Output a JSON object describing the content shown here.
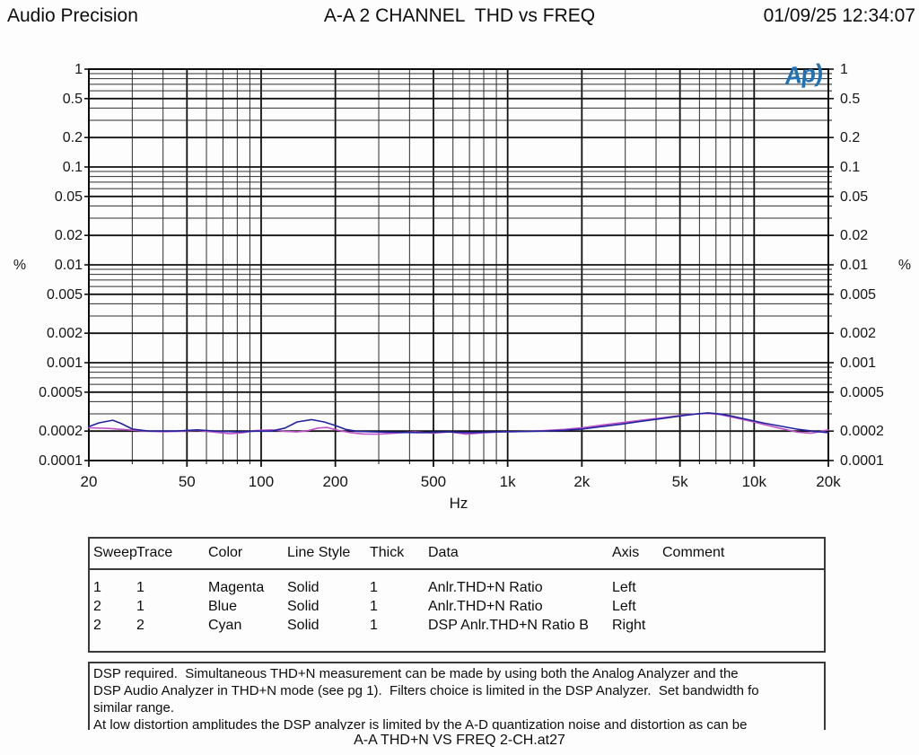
{
  "header": {
    "app": "Audio Precision",
    "title": "A-A 2 CHANNEL  THD vs FREQ",
    "datetime": "01/09/25 12:34:07"
  },
  "logo": {
    "text": "Ap)"
  },
  "chart_data": {
    "type": "line",
    "x_scale": "log",
    "y_scale": "log",
    "x_range": [
      20,
      20000
    ],
    "y_range": [
      0.0001,
      1
    ],
    "x_axis_label": "Hz",
    "y_axis_label_left": "%",
    "y_axis_label_right": "%",
    "grid": "on",
    "x_ticks": [
      {
        "value": 20,
        "label": "20"
      },
      {
        "value": 50,
        "label": "50"
      },
      {
        "value": 100,
        "label": "100"
      },
      {
        "value": 200,
        "label": "200"
      },
      {
        "value": 500,
        "label": "500"
      },
      {
        "value": 1000,
        "label": "1k"
      },
      {
        "value": 2000,
        "label": "2k"
      },
      {
        "value": 5000,
        "label": "5k"
      },
      {
        "value": 10000,
        "label": "10k"
      },
      {
        "value": 20000,
        "label": "20k"
      }
    ],
    "y_ticks": [
      {
        "value": 1,
        "label": "1"
      },
      {
        "value": 0.5,
        "label": "0.5"
      },
      {
        "value": 0.2,
        "label": "0.2"
      },
      {
        "value": 0.1,
        "label": "0.1"
      },
      {
        "value": 0.05,
        "label": "0.05"
      },
      {
        "value": 0.02,
        "label": "0.02"
      },
      {
        "value": 0.01,
        "label": "0.01"
      },
      {
        "value": 0.005,
        "label": "0.005"
      },
      {
        "value": 0.002,
        "label": "0.002"
      },
      {
        "value": 0.001,
        "label": "0.001"
      },
      {
        "value": 0.0005,
        "label": "0.0005"
      },
      {
        "value": 0.0002,
        "label": "0.0002"
      },
      {
        "value": 0.0001,
        "label": "0.0001"
      }
    ],
    "series": [
      {
        "name": "Anlr.THD+N Ratio (Sweep 1)",
        "color_name": "Magenta",
        "color": "#bf52c8",
        "axis": "Left",
        "points": [
          [
            20,
            0.000216
          ],
          [
            24,
            0.000213
          ],
          [
            28,
            0.000207
          ],
          [
            33,
            0.000201
          ],
          [
            40,
            0.000197
          ],
          [
            48,
            0.0002
          ],
          [
            55,
            0.000204
          ],
          [
            65,
            0.000195
          ],
          [
            75,
            0.000188
          ],
          [
            85,
            0.000193
          ],
          [
            95,
            0.000203
          ],
          [
            110,
            0.000206
          ],
          [
            125,
            0.000199
          ],
          [
            140,
            0.000196
          ],
          [
            155,
            0.000202
          ],
          [
            170,
            0.000215
          ],
          [
            185,
            0.000218
          ],
          [
            205,
            0.000204
          ],
          [
            230,
            0.000193
          ],
          [
            260,
            0.000187
          ],
          [
            300,
            0.000186
          ],
          [
            350,
            0.000191
          ],
          [
            420,
            0.000196
          ],
          [
            500,
            0.000191
          ],
          [
            580,
            0.000196
          ],
          [
            680,
            0.000186
          ],
          [
            800,
            0.000192
          ],
          [
            950,
            0.000196
          ],
          [
            1150,
            0.000198
          ],
          [
            1400,
            0.000202
          ],
          [
            1700,
            0.000208
          ],
          [
            2000,
            0.000216
          ],
          [
            2400,
            0.00023
          ],
          [
            2900,
            0.000244
          ],
          [
            3500,
            0.000258
          ],
          [
            4200,
            0.000273
          ],
          [
            5000,
            0.000289
          ],
          [
            5800,
            0.000299
          ],
          [
            6500,
            0.000303
          ],
          [
            7300,
            0.000295
          ],
          [
            8200,
            0.000277
          ],
          [
            9500,
            0.000255
          ],
          [
            11000,
            0.000233
          ],
          [
            13000,
            0.000211
          ],
          [
            15000,
            0.000195
          ],
          [
            17000,
            0.00019
          ],
          [
            18500,
            0.000198
          ],
          [
            20000,
            0.000206
          ]
        ]
      },
      {
        "name": "Anlr.THD+N Ratio (Sweep 2)",
        "color_name": "Blue",
        "color": "#2323a0",
        "axis": "Left",
        "points": [
          [
            20,
            0.000222
          ],
          [
            22,
            0.000243
          ],
          [
            25,
            0.000258
          ],
          [
            27,
            0.00024
          ],
          [
            30,
            0.00021
          ],
          [
            35,
            0.0002
          ],
          [
            45,
            0.0002
          ],
          [
            55,
            0.000206
          ],
          [
            65,
            0.0002
          ],
          [
            80,
            0.000196
          ],
          [
            95,
            0.0002
          ],
          [
            110,
            0.0002
          ],
          [
            125,
            0.000215
          ],
          [
            140,
            0.000248
          ],
          [
            160,
            0.000262
          ],
          [
            180,
            0.000248
          ],
          [
            200,
            0.000228
          ],
          [
            220,
            0.000208
          ],
          [
            245,
            0.000199
          ],
          [
            280,
            0.000197
          ],
          [
            350,
            0.000194
          ],
          [
            450,
            0.000193
          ],
          [
            560,
            0.000196
          ],
          [
            700,
            0.000193
          ],
          [
            900,
            0.000196
          ],
          [
            1100,
            0.000198
          ],
          [
            1400,
            0.0002
          ],
          [
            1700,
            0.000204
          ],
          [
            2000,
            0.00021
          ],
          [
            2400,
            0.000222
          ],
          [
            2900,
            0.000236
          ],
          [
            3500,
            0.000252
          ],
          [
            4200,
            0.000268
          ],
          [
            5000,
            0.000285
          ],
          [
            5800,
            0.000299
          ],
          [
            6500,
            0.000307
          ],
          [
            7300,
            0.000299
          ],
          [
            8200,
            0.000283
          ],
          [
            9500,
            0.000261
          ],
          [
            11000,
            0.000241
          ],
          [
            13000,
            0.000223
          ],
          [
            15000,
            0.000209
          ],
          [
            17500,
            0.000199
          ],
          [
            20000,
            0.000193
          ]
        ]
      }
    ]
  },
  "legend_table": {
    "headers": [
      "Sweep",
      "Trace",
      "Color",
      "Line Style",
      "Thick",
      "Data",
      "Axis",
      "Comment"
    ],
    "rows": [
      [
        "1",
        "1",
        "Magenta",
        "Solid",
        "1",
        "Anlr.THD+N Ratio",
        "Left",
        ""
      ],
      [
        "2",
        "1",
        "Blue",
        "Solid",
        "1",
        "Anlr.THD+N Ratio",
        "Left",
        ""
      ],
      [
        "2",
        "2",
        "Cyan",
        "Solid",
        "1",
        "DSP Anlr.THD+N Ratio B",
        "Right",
        ""
      ]
    ]
  },
  "comment": {
    "lines": [
      "DSP required.  Simultaneous THD+N measurement can be made by using both the Analog Analyzer and the",
      "DSP Audio Analyzer in THD+N mode (see pg 1).  Filters choice is limited in the DSP Analyzer.  Set bandwidth fo",
      "similar range.",
      "At low distortion amplitudes the DSP analyzer is limited by the A-D quantization noise and distortion as can be"
    ]
  },
  "footer": {
    "filename": "A-A THD+N VS FREQ 2-CH.at27"
  }
}
